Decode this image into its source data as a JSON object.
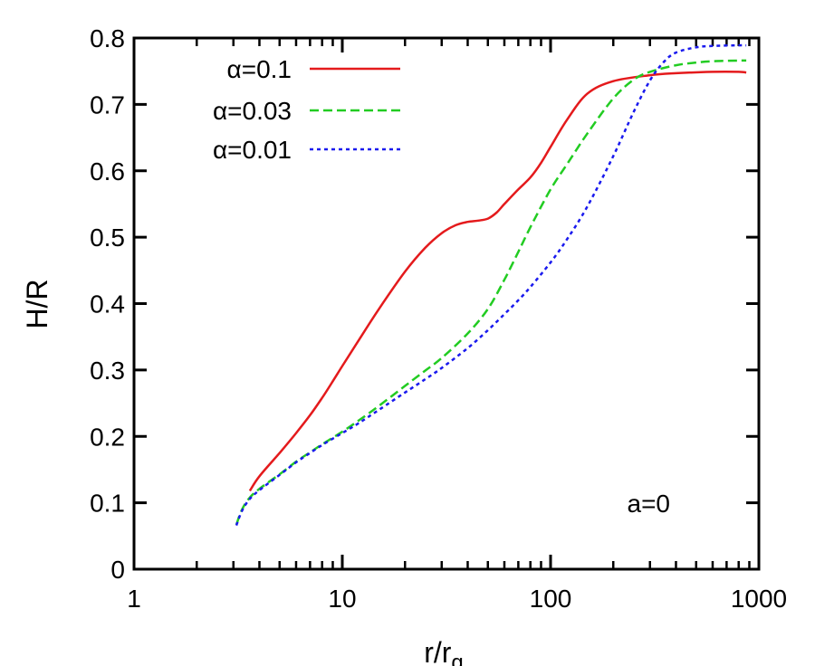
{
  "chart_data": {
    "type": "line",
    "x_scale": "log",
    "xlim": [
      1,
      1000
    ],
    "ylim": [
      0,
      0.8
    ],
    "xlabel": "r/r",
    "xlabel_sub": "g",
    "ylabel": "H/R",
    "x_ticks": [
      "1",
      "10",
      "100",
      "1000"
    ],
    "y_ticks": [
      "0",
      "0.1",
      "0.2",
      "0.3",
      "0.4",
      "0.5",
      "0.6",
      "0.7",
      "0.8"
    ],
    "legend_position": "top-left",
    "annotation": "a=0",
    "series": [
      {
        "name": "α=0.1",
        "color": "#e41a1c",
        "dash": "solid",
        "x": [
          3.6,
          4,
          5,
          6,
          7,
          8,
          9,
          10,
          12,
          15,
          20,
          25,
          30,
          35,
          40,
          45,
          50,
          55,
          60,
          70,
          80,
          90,
          100,
          120,
          150,
          200,
          300,
          400,
          600,
          800,
          870
        ],
        "y": [
          0.118,
          0.14,
          0.175,
          0.205,
          0.232,
          0.258,
          0.283,
          0.306,
          0.345,
          0.392,
          0.448,
          0.484,
          0.506,
          0.518,
          0.523,
          0.525,
          0.528,
          0.537,
          0.55,
          0.572,
          0.59,
          0.612,
          0.636,
          0.677,
          0.716,
          0.735,
          0.744,
          0.747,
          0.749,
          0.749,
          0.748
        ]
      },
      {
        "name": "α=0.03",
        "color": "#22cc22",
        "dash": "dashed",
        "x": [
          3.1,
          3.3,
          3.6,
          4,
          5,
          6,
          7,
          8,
          10,
          12,
          15,
          20,
          25,
          30,
          40,
          50,
          60,
          70,
          80,
          100,
          120,
          150,
          200,
          250,
          300,
          400,
          500,
          600,
          800,
          870
        ],
        "y": [
          0.067,
          0.09,
          0.108,
          0.121,
          0.143,
          0.162,
          0.176,
          0.188,
          0.207,
          0.224,
          0.246,
          0.276,
          0.299,
          0.318,
          0.355,
          0.392,
          0.436,
          0.478,
          0.515,
          0.572,
          0.61,
          0.656,
          0.709,
          0.737,
          0.749,
          0.759,
          0.763,
          0.765,
          0.766,
          0.766
        ]
      },
      {
        "name": "α=0.01",
        "color": "#1a1aee",
        "dash": "dotted",
        "x": [
          3.1,
          3.3,
          3.6,
          4,
          5,
          6,
          7,
          8,
          10,
          12,
          15,
          20,
          25,
          30,
          40,
          50,
          60,
          70,
          80,
          100,
          120,
          150,
          200,
          250,
          300,
          350,
          400,
          500,
          600,
          800,
          870
        ],
        "y": [
          0.066,
          0.088,
          0.106,
          0.119,
          0.142,
          0.161,
          0.175,
          0.187,
          0.205,
          0.22,
          0.24,
          0.266,
          0.286,
          0.303,
          0.333,
          0.36,
          0.384,
          0.405,
          0.425,
          0.462,
          0.497,
          0.546,
          0.622,
          0.688,
          0.736,
          0.764,
          0.778,
          0.786,
          0.788,
          0.789,
          0.789
        ]
      }
    ]
  }
}
